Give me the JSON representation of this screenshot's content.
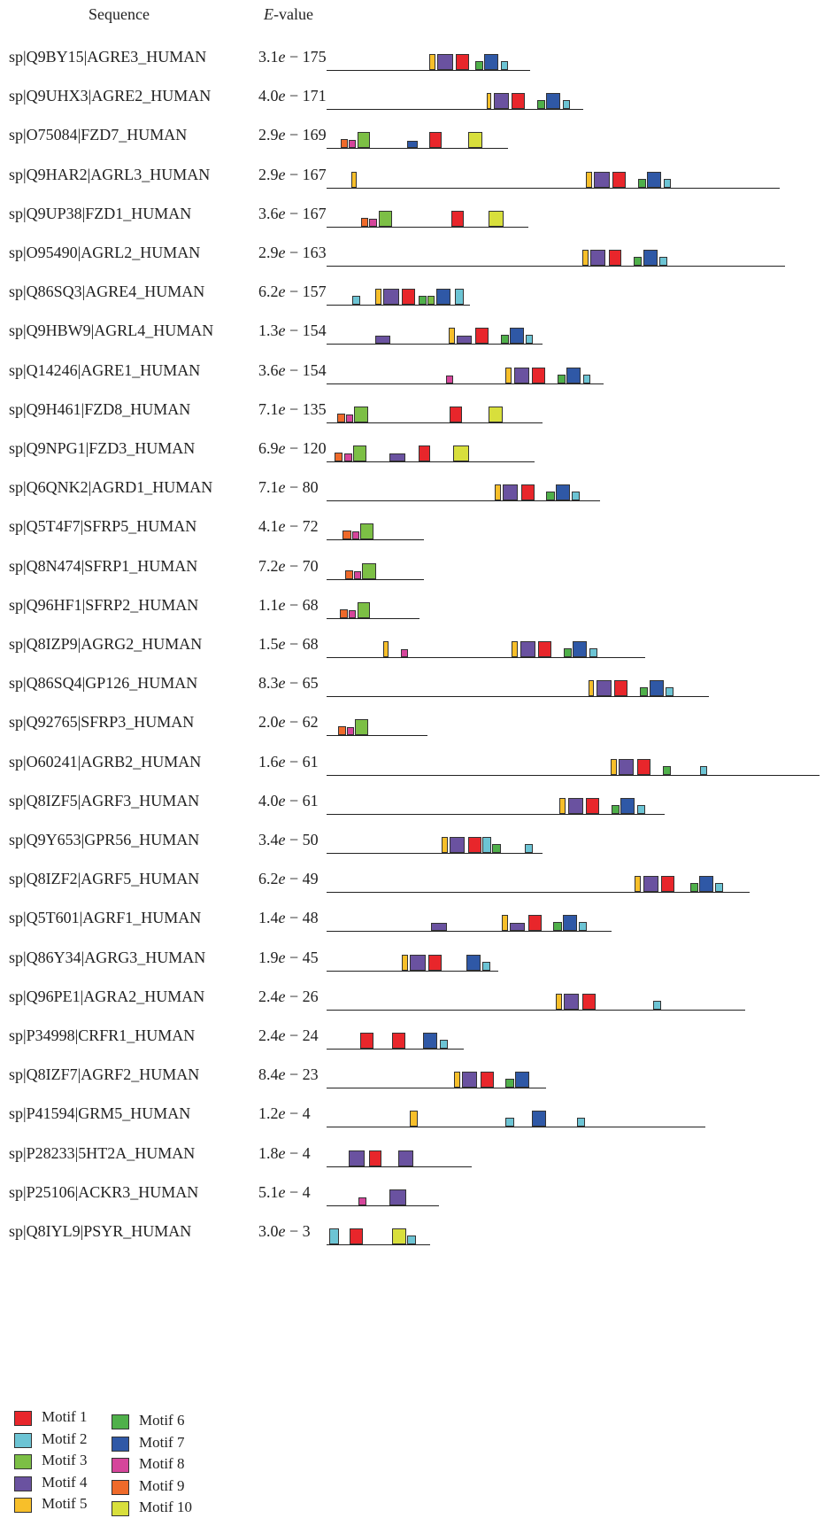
{
  "header": {
    "sequence_label": "Sequence",
    "evalue_label_italic": "E",
    "evalue_label_rest": "-value"
  },
  "colors": {
    "1": "#e8262b",
    "2": "#6cc4d4",
    "3": "#7cbf45",
    "4": "#6a52a0",
    "5": "#f7bf2a",
    "6": "#4fb04a",
    "7": "#2f58a6",
    "8": "#d5459b",
    "9": "#ef6a2a",
    "10": "#d8df3c"
  },
  "legend": [
    {
      "motif": 1,
      "label": "Motif 1"
    },
    {
      "motif": 2,
      "label": "Motif 2"
    },
    {
      "motif": 3,
      "label": "Motif 3"
    },
    {
      "motif": 4,
      "label": "Motif 4"
    },
    {
      "motif": 5,
      "label": "Motif 5"
    },
    {
      "motif": 6,
      "label": "Motif 6"
    },
    {
      "motif": 7,
      "label": "Motif 7"
    },
    {
      "motif": 8,
      "label": "Motif 8"
    },
    {
      "motif": 9,
      "label": "Motif 9"
    },
    {
      "motif": 10,
      "label": "Motif 10"
    }
  ],
  "chart_data": {
    "type": "motif-diagram",
    "rows": [
      {
        "seq": "sp|Q9BY15|AGRE3_HUMAN",
        "mant": "3.1",
        "exp": " − 175",
        "length": 1.0,
        "motifs": [
          [
            5,
            0.505,
            0.535
          ],
          [
            4,
            0.545,
            0.62
          ],
          [
            1,
            0.635,
            0.7
          ],
          [
            6,
            0.73,
            0.77
          ],
          [
            7,
            0.775,
            0.845
          ],
          [
            2,
            0.855,
            0.89
          ]
        ]
      },
      {
        "seq": "sp|Q9UHX3|AGRE2_HUMAN",
        "mant": "4.0",
        "exp": " − 171",
        "length": 1.26,
        "motifs": [
          [
            5,
            0.785,
            0.81
          ],
          [
            4,
            0.82,
            0.895
          ],
          [
            1,
            0.91,
            0.975
          ],
          [
            6,
            1.035,
            1.075
          ],
          [
            7,
            1.08,
            1.15
          ],
          [
            2,
            1.16,
            1.195
          ]
        ]
      },
      {
        "seq": "sp|O75084|FZD7_HUMAN",
        "mant": "2.9",
        "exp": " − 169",
        "length": 0.89,
        "motifs": [
          [
            9,
            0.07,
            0.105
          ],
          [
            8,
            0.11,
            0.145
          ],
          [
            3,
            0.15,
            0.215
          ],
          [
            7,
            0.395,
            0.45
          ],
          [
            1,
            0.505,
            0.565
          ],
          [
            10,
            0.695,
            0.765
          ]
        ]
      },
      {
        "seq": "sp|Q9HAR2|AGRL3_HUMAN",
        "mant": "2.9",
        "exp": " − 167",
        "length": 2.225,
        "motifs": [
          [
            5,
            0.12,
            0.15
          ],
          [
            5,
            1.275,
            1.305
          ],
          [
            4,
            1.315,
            1.39
          ],
          [
            1,
            1.405,
            1.47
          ],
          [
            6,
            1.53,
            1.57
          ],
          [
            7,
            1.575,
            1.645
          ],
          [
            2,
            1.655,
            1.69
          ]
        ]
      },
      {
        "seq": "sp|Q9UP38|FZD1_HUMAN",
        "mant": "3.6",
        "exp": " − 167",
        "length": 0.99,
        "motifs": [
          [
            9,
            0.17,
            0.205
          ],
          [
            8,
            0.21,
            0.25
          ],
          [
            3,
            0.255,
            0.32
          ],
          [
            1,
            0.615,
            0.675
          ],
          [
            10,
            0.795,
            0.87
          ]
        ]
      },
      {
        "seq": "sp|O95490|AGRL2_HUMAN",
        "mant": "2.9",
        "exp": " − 163",
        "length": 2.25,
        "motifs": [
          [
            5,
            1.255,
            1.285
          ],
          [
            4,
            1.295,
            1.37
          ],
          [
            1,
            1.385,
            1.45
          ],
          [
            6,
            1.51,
            1.55
          ],
          [
            7,
            1.555,
            1.625
          ],
          [
            2,
            1.635,
            1.675
          ]
        ]
      },
      {
        "seq": "sp|Q86SQ3|AGRE4_HUMAN",
        "mant": "6.2",
        "exp": " − 157",
        "length": 0.705,
        "motifs": [
          [
            2,
            0.125,
            0.165
          ],
          [
            5,
            0.24,
            0.27
          ],
          [
            4,
            0.28,
            0.355
          ],
          [
            1,
            0.37,
            0.435
          ],
          [
            6,
            0.45,
            0.49
          ],
          [
            3,
            0.495,
            0.53
          ],
          [
            7,
            0.54,
            0.61
          ],
          [
            2,
            0.63,
            0.675
          ]
        ]
      },
      {
        "seq": "sp|Q9HBW9|AGRL4_HUMAN",
        "mant": "1.3",
        "exp": " − 154",
        "length": 1.06,
        "motifs": [
          [
            4,
            0.24,
            0.315
          ],
          [
            5,
            0.6,
            0.63
          ],
          [
            4,
            0.64,
            0.715
          ],
          [
            1,
            0.73,
            0.795
          ],
          [
            6,
            0.855,
            0.895
          ],
          [
            7,
            0.9,
            0.97
          ],
          [
            2,
            0.98,
            1.015
          ]
        ]
      },
      {
        "seq": "sp|Q14246|AGRE1_HUMAN",
        "mant": "3.6",
        "exp": " − 154",
        "length": 1.36,
        "motifs": [
          [
            8,
            0.585,
            0.62
          ],
          [
            5,
            0.88,
            0.91
          ],
          [
            4,
            0.92,
            0.995
          ],
          [
            1,
            1.01,
            1.075
          ],
          [
            6,
            1.135,
            1.175
          ],
          [
            7,
            1.18,
            1.25
          ],
          [
            2,
            1.26,
            1.295
          ]
        ]
      },
      {
        "seq": "sp|Q9H461|FZD8_HUMAN",
        "mant": "7.1",
        "exp": " − 135",
        "length": 1.06,
        "motifs": [
          [
            9,
            0.05,
            0.09
          ],
          [
            8,
            0.095,
            0.13
          ],
          [
            3,
            0.135,
            0.205
          ],
          [
            1,
            0.605,
            0.665
          ],
          [
            10,
            0.795,
            0.865
          ]
        ]
      },
      {
        "seq": "sp|Q9NPG1|FZD3_HUMAN",
        "mant": "6.9",
        "exp": " − 120",
        "length": 1.02,
        "motifs": [
          [
            9,
            0.04,
            0.08
          ],
          [
            8,
            0.085,
            0.125
          ],
          [
            3,
            0.13,
            0.195
          ],
          [
            4,
            0.31,
            0.385
          ],
          [
            1,
            0.45,
            0.51
          ],
          [
            10,
            0.62,
            0.7
          ]
        ]
      },
      {
        "seq": "sp|Q6QNK2|AGRD1_HUMAN",
        "mant": "7.1",
        "exp": " − 80",
        "length": 1.345,
        "motifs": [
          [
            5,
            0.825,
            0.855
          ],
          [
            4,
            0.865,
            0.94
          ],
          [
            1,
            0.955,
            1.02
          ],
          [
            6,
            1.08,
            1.12
          ],
          [
            7,
            1.125,
            1.195
          ],
          [
            2,
            1.205,
            1.245
          ]
        ]
      },
      {
        "seq": "sp|Q5T4F7|SFRP5_HUMAN",
        "mant": "4.1",
        "exp": " − 72",
        "length": 0.48,
        "motifs": [
          [
            9,
            0.08,
            0.12
          ],
          [
            8,
            0.125,
            0.16
          ],
          [
            3,
            0.165,
            0.23
          ]
        ]
      },
      {
        "seq": "sp|Q8N474|SFRP1_HUMAN",
        "mant": "7.2",
        "exp": " − 70",
        "length": 0.48,
        "motifs": [
          [
            9,
            0.09,
            0.13
          ],
          [
            8,
            0.135,
            0.17
          ],
          [
            3,
            0.175,
            0.245
          ]
        ]
      },
      {
        "seq": "sp|Q96HF1|SFRP2_HUMAN",
        "mant": "1.1",
        "exp": " − 68",
        "length": 0.455,
        "motifs": [
          [
            9,
            0.065,
            0.105
          ],
          [
            8,
            0.11,
            0.145
          ],
          [
            3,
            0.15,
            0.215
          ]
        ]
      },
      {
        "seq": "sp|Q8IZP9|AGRG2_HUMAN",
        "mant": "1.5",
        "exp": " − 68",
        "length": 1.565,
        "motifs": [
          [
            5,
            0.28,
            0.305
          ],
          [
            8,
            0.365,
            0.4
          ],
          [
            5,
            0.91,
            0.94
          ],
          [
            4,
            0.95,
            1.025
          ],
          [
            1,
            1.04,
            1.105
          ],
          [
            6,
            1.165,
            1.205
          ],
          [
            7,
            1.21,
            1.28
          ],
          [
            2,
            1.29,
            1.33
          ]
        ]
      },
      {
        "seq": "sp|Q86SQ4|GP126_HUMAN",
        "mant": "8.3",
        "exp": " − 65",
        "length": 1.88,
        "motifs": [
          [
            5,
            1.285,
            1.315
          ],
          [
            4,
            1.325,
            1.4
          ],
          [
            1,
            1.415,
            1.48
          ],
          [
            6,
            1.54,
            1.58
          ],
          [
            7,
            1.585,
            1.655
          ],
          [
            2,
            1.665,
            1.705
          ]
        ]
      },
      {
        "seq": "sp|Q92765|SFRP3_HUMAN",
        "mant": "2.0",
        "exp": " − 62",
        "length": 0.495,
        "motifs": [
          [
            9,
            0.055,
            0.095
          ],
          [
            8,
            0.1,
            0.135
          ],
          [
            3,
            0.14,
            0.205
          ]
        ]
      },
      {
        "seq": "sp|O60241|AGRB2_HUMAN",
        "mant": "1.6",
        "exp": " − 61",
        "length": 2.42,
        "motifs": [
          [
            5,
            1.395,
            1.425
          ],
          [
            4,
            1.435,
            1.51
          ],
          [
            1,
            1.525,
            1.59
          ],
          [
            6,
            1.65,
            1.69
          ],
          [
            2,
            1.835,
            1.87
          ]
        ]
      },
      {
        "seq": "sp|Q8IZF5|AGRF3_HUMAN",
        "mant": "4.0",
        "exp": " − 61",
        "length": 1.66,
        "motifs": [
          [
            5,
            1.145,
            1.175
          ],
          [
            4,
            1.185,
            1.26
          ],
          [
            1,
            1.275,
            1.34
          ],
          [
            6,
            1.4,
            1.44
          ],
          [
            7,
            1.445,
            1.515
          ],
          [
            2,
            1.525,
            1.565
          ]
        ]
      },
      {
        "seq": "sp|Q9Y653|GPR56_HUMAN",
        "mant": "3.4",
        "exp": " − 50",
        "length": 1.06,
        "motifs": [
          [
            5,
            0.565,
            0.595
          ],
          [
            4,
            0.605,
            0.68
          ],
          [
            1,
            0.695,
            0.76
          ],
          [
            2,
            0.765,
            0.81
          ],
          [
            6,
            0.815,
            0.855
          ],
          [
            2,
            0.975,
            1.015
          ]
        ]
      },
      {
        "seq": "sp|Q8IZF2|AGRF5_HUMAN",
        "mant": "6.2",
        "exp": " − 49",
        "length": 2.08,
        "motifs": [
          [
            5,
            1.515,
            1.545
          ],
          [
            4,
            1.555,
            1.63
          ],
          [
            1,
            1.645,
            1.71
          ],
          [
            6,
            1.785,
            1.825
          ],
          [
            7,
            1.83,
            1.9
          ],
          [
            2,
            1.91,
            1.95
          ]
        ]
      },
      {
        "seq": "sp|Q5T601|AGRF1_HUMAN",
        "mant": "1.4",
        "exp": " − 48",
        "length": 1.4,
        "motifs": [
          [
            4,
            0.515,
            0.59
          ],
          [
            5,
            0.86,
            0.89
          ],
          [
            4,
            0.9,
            0.975
          ],
          [
            1,
            0.99,
            1.055
          ],
          [
            6,
            1.115,
            1.155
          ],
          [
            7,
            1.16,
            1.23
          ],
          [
            2,
            1.24,
            1.28
          ]
        ]
      },
      {
        "seq": "sp|Q86Y34|AGRG3_HUMAN",
        "mant": "1.9",
        "exp": " − 45",
        "length": 0.845,
        "motifs": [
          [
            5,
            0.37,
            0.4
          ],
          [
            4,
            0.41,
            0.485
          ],
          [
            1,
            0.5,
            0.565
          ],
          [
            7,
            0.685,
            0.755
          ],
          [
            2,
            0.765,
            0.805
          ]
        ]
      },
      {
        "seq": "sp|Q96PE1|AGRA2_HUMAN",
        "mant": "2.4",
        "exp": " − 26",
        "length": 2.055,
        "motifs": [
          [
            5,
            1.125,
            1.155
          ],
          [
            4,
            1.165,
            1.24
          ],
          [
            1,
            1.255,
            1.32
          ],
          [
            2,
            1.605,
            1.645
          ]
        ]
      },
      {
        "seq": "sp|P34998|CRFR1_HUMAN",
        "mant": "2.4",
        "exp": " − 24",
        "length": 0.675,
        "motifs": [
          [
            1,
            0.165,
            0.23
          ],
          [
            1,
            0.32,
            0.385
          ],
          [
            7,
            0.475,
            0.545
          ],
          [
            2,
            0.555,
            0.595
          ]
        ]
      },
      {
        "seq": "sp|Q8IZF7|AGRF2_HUMAN",
        "mant": "8.4",
        "exp": " − 23",
        "length": 1.08,
        "motifs": [
          [
            5,
            0.625,
            0.655
          ],
          [
            4,
            0.665,
            0.74
          ],
          [
            1,
            0.755,
            0.82
          ],
          [
            6,
            0.88,
            0.92
          ],
          [
            7,
            0.925,
            0.995
          ]
        ]
      },
      {
        "seq": "sp|P41594|GRM5_HUMAN",
        "mant": "1.2",
        "exp": " − 4",
        "length": 1.86,
        "motifs": [
          [
            5,
            0.41,
            0.45
          ],
          [
            2,
            0.88,
            0.92
          ],
          [
            7,
            1.01,
            1.08
          ],
          [
            2,
            1.23,
            1.27
          ]
        ]
      },
      {
        "seq": "sp|P28233|5HT2A_HUMAN",
        "mant": "1.8",
        "exp": " − 4",
        "length": 0.715,
        "motifs": [
          [
            4,
            0.11,
            0.185
          ],
          [
            1,
            0.21,
            0.27
          ],
          [
            4,
            0.35,
            0.425
          ]
        ]
      },
      {
        "seq": "sp|P25106|ACKR3_HUMAN",
        "mant": "5.1",
        "exp": " − 4",
        "length": 0.55,
        "motifs": [
          [
            8,
            0.155,
            0.195
          ],
          [
            4,
            0.31,
            0.39
          ]
        ]
      },
      {
        "seq": "sp|Q8IYL9|PSYR_HUMAN",
        "mant": "3.0",
        "exp": " − 3",
        "length": 0.51,
        "motifs": [
          [
            2,
            0.015,
            0.06
          ],
          [
            1,
            0.115,
            0.18
          ],
          [
            10,
            0.32,
            0.39
          ],
          [
            2,
            0.395,
            0.44
          ]
        ]
      }
    ]
  }
}
